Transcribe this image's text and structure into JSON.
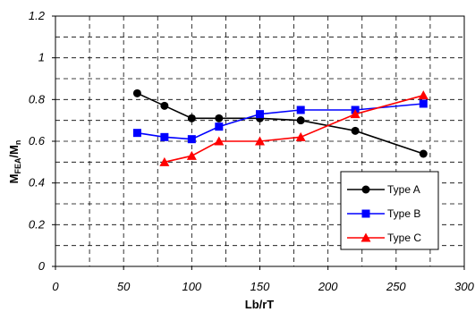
{
  "chart_data": {
    "type": "line",
    "xlabel": "Lb/rT",
    "ylabel": "M_FEA/M_n",
    "xlim": [
      0,
      300
    ],
    "ylim": [
      0,
      1.2
    ],
    "xticks": [
      0,
      50,
      100,
      150,
      200,
      250,
      300
    ],
    "yticks": [
      0,
      0.2,
      0.4,
      0.6,
      0.8,
      1,
      1.2
    ],
    "xtick_labels": [
      "0",
      "50",
      "100",
      "150",
      "200",
      "250",
      "300"
    ],
    "ytick_labels": [
      "0",
      "0.2",
      "0.4",
      "0.6",
      "0.8",
      "1",
      "1.2"
    ],
    "grid": true,
    "grid_style": "dashed",
    "legend_position": "bottom-right",
    "series": [
      {
        "name": "Type A",
        "color": "#000000",
        "marker": "circle",
        "points": [
          [
            60,
            0.83
          ],
          [
            80,
            0.77
          ],
          [
            100,
            0.71
          ],
          [
            120,
            0.71
          ],
          [
            150,
            0.71
          ],
          [
            180,
            0.7
          ],
          [
            220,
            0.65
          ],
          [
            270,
            0.54
          ]
        ]
      },
      {
        "name": "Type B",
        "color": "#0000ff",
        "marker": "square",
        "points": [
          [
            60,
            0.64
          ],
          [
            80,
            0.62
          ],
          [
            100,
            0.61
          ],
          [
            120,
            0.67
          ],
          [
            150,
            0.73
          ],
          [
            180,
            0.75
          ],
          [
            220,
            0.75
          ],
          [
            270,
            0.78
          ]
        ]
      },
      {
        "name": "Type C",
        "color": "#ff0000",
        "marker": "triangle",
        "points": [
          [
            80,
            0.5
          ],
          [
            100,
            0.53
          ],
          [
            120,
            0.6
          ],
          [
            150,
            0.6
          ],
          [
            180,
            0.62
          ],
          [
            220,
            0.73
          ],
          [
            270,
            0.82
          ]
        ]
      }
    ]
  }
}
